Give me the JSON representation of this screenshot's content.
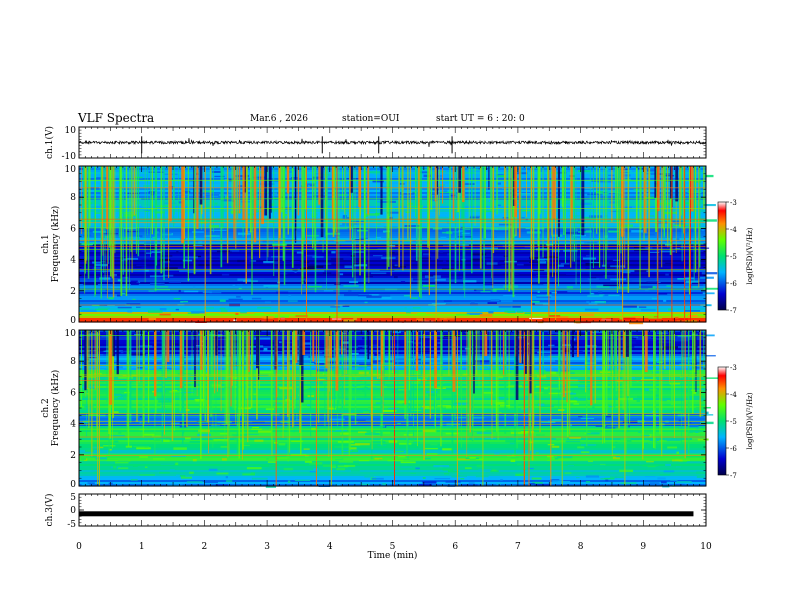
{
  "header": {
    "title": "VLF Spectra",
    "date": "Mar.6 , 2026",
    "station": "station=OUI",
    "start": "start UT = 6 : 20: 0"
  },
  "chart_data": [
    {
      "type": "line",
      "panel": "ch1-waveform",
      "ylabel": "ch.1(V)",
      "ylim": [
        -10,
        10
      ],
      "y_ticks": [
        "10",
        "-10"
      ],
      "xlim": [
        0,
        10
      ]
    },
    {
      "type": "heatmap",
      "panel": "ch1-spectrogram",
      "ylabel_line1": "ch.1",
      "ylabel_line2": "Frequency (kHz)",
      "ylim": [
        0,
        10
      ],
      "y_ticks": [
        "0",
        "2",
        "4",
        "6",
        "8",
        "10"
      ],
      "xlim": [
        0,
        10
      ],
      "colorbar": {
        "label": "log(PSD)(V²/Hz)",
        "range": [
          -7,
          -3
        ],
        "ticks": [
          "-3",
          "-4",
          "-5",
          "-6",
          "-7"
        ]
      }
    },
    {
      "type": "heatmap",
      "panel": "ch2-spectrogram",
      "ylabel_line1": "ch.2",
      "ylabel_line2": "Frequency (kHz)",
      "ylim": [
        0,
        10
      ],
      "y_ticks": [
        "0",
        "2",
        "4",
        "6",
        "8",
        "10"
      ],
      "xlim": [
        0,
        10
      ],
      "colorbar": {
        "label": "log(PSD)(V²/Hz)",
        "range": [
          -7,
          -3
        ],
        "ticks": [
          "-3",
          "-4",
          "-5",
          "-6",
          "-7"
        ]
      }
    },
    {
      "type": "line",
      "panel": "ch3-waveform",
      "ylabel": "ch.3(V)",
      "ylim": [
        -5,
        5
      ],
      "y_ticks": [
        "5",
        "0",
        "-5"
      ],
      "xlim": [
        0,
        10
      ],
      "xlabel": "Time (min)",
      "x_ticks": [
        "0",
        "1",
        "2",
        "3",
        "4",
        "5",
        "6",
        "7",
        "8",
        "9",
        "10"
      ]
    }
  ]
}
